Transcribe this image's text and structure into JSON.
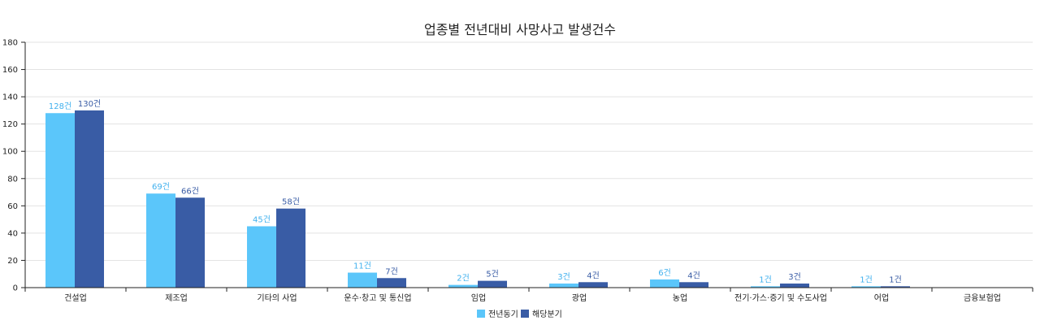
{
  "chart_data": {
    "type": "bar",
    "title": "업종별 전년대비 사망사고 발생건수",
    "categories": [
      "건설업",
      "제조업",
      "기타의 사업",
      "운수·창고 및 통신업",
      "임업",
      "광업",
      "농업",
      "전기·가스·증기 및 수도사업",
      "어업",
      "금융보험업"
    ],
    "series": [
      {
        "name": "전년동기",
        "values": [
          128,
          69,
          45,
          11,
          2,
          3,
          6,
          1,
          1,
          null
        ],
        "color": "#5bc6fa",
        "label_color": "#3fb0ee"
      },
      {
        "name": "해당분기",
        "values": [
          130,
          66,
          58,
          7,
          5,
          4,
          4,
          3,
          1,
          null
        ],
        "color": "#395ca5",
        "label_color": "#395ca5"
      }
    ],
    "value_suffix": "건",
    "ylim": [
      0,
      180
    ],
    "yticks": [
      0,
      20,
      40,
      60,
      80,
      100,
      120,
      140,
      160,
      180
    ],
    "grid": true,
    "legend_position": "bottom"
  }
}
